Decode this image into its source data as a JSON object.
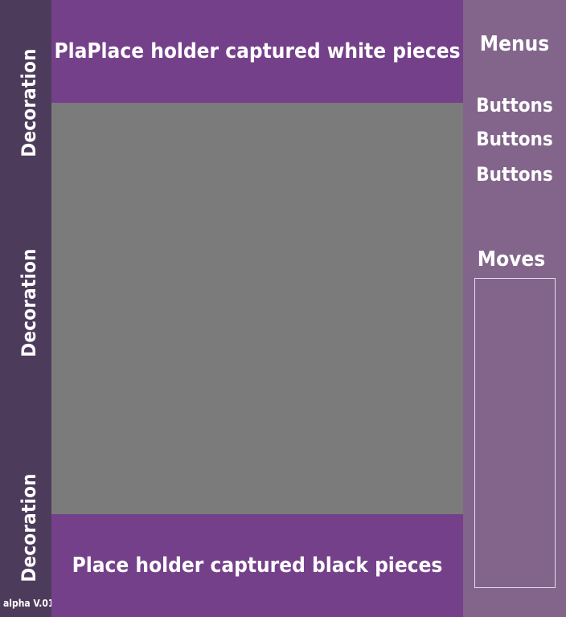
{
  "left_sidebar": {
    "decorations": [
      "Decoration",
      "Decoration",
      "Decoration"
    ],
    "version": "alpha V.01"
  },
  "captured": {
    "white_label": "PlaPlace holder captured white pieces",
    "black_label": "Place holder captured black pieces"
  },
  "right_panel": {
    "menus_title": "Menus",
    "buttons": [
      "Buttons",
      "Buttons",
      "Buttons"
    ],
    "moves_title": "Moves",
    "moves": []
  },
  "colors": {
    "left_bar": "#4d3b5c",
    "holder_bar": "#75408a",
    "board": "#7b7b7b",
    "right_bar": "#83658b"
  }
}
